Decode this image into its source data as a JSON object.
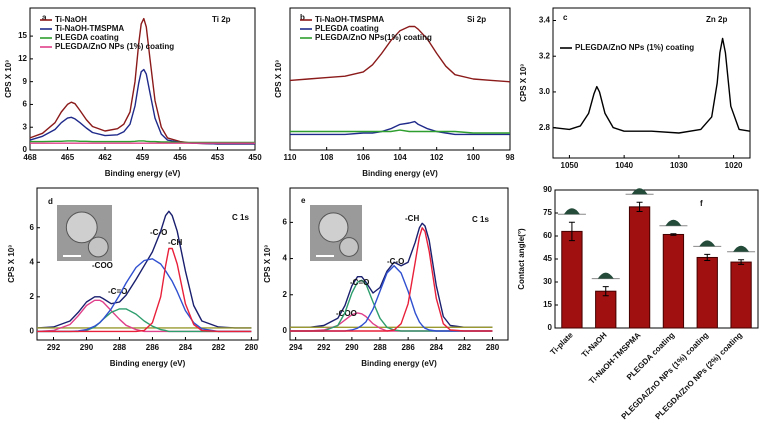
{
  "chart_data": [
    {
      "type": "line",
      "label": "a",
      "annotation": "Ti 2p",
      "xlabel": "Binding energy (eV)",
      "ylabel": "CPS X 10³",
      "legend": true,
      "xlim": [
        468,
        450
      ],
      "xticks": [
        468,
        465,
        462,
        459,
        456,
        453,
        450
      ],
      "ylim": [
        0,
        18.7
      ],
      "yticks": [
        0,
        3,
        6,
        9,
        12,
        15
      ],
      "x": [
        468,
        467,
        466,
        465.5,
        465,
        464.7,
        464.4,
        464,
        463.5,
        463,
        462,
        461,
        460.5,
        460,
        459.6,
        459.3,
        459.1,
        458.9,
        458.7,
        458.4,
        458,
        457.5,
        457,
        456,
        455,
        453,
        450
      ],
      "series": [
        {
          "name": "Ti-NaOH",
          "color": "#8b1a1a",
          "values": [
            1.6,
            2.2,
            3.6,
            5.0,
            6.0,
            6.3,
            6.1,
            5.2,
            4.0,
            3.1,
            2.5,
            2.8,
            3.4,
            5.0,
            9.0,
            14.0,
            16.6,
            17.3,
            16.2,
            12.0,
            6.5,
            3.0,
            1.6,
            1.1,
            0.9,
            0.8,
            0.8
          ]
        },
        {
          "name": "Ti-NaOH-TMSPMA",
          "color": "#1f2a8a",
          "values": [
            1.3,
            1.8,
            2.7,
            3.6,
            4.2,
            4.3,
            4.1,
            3.6,
            2.9,
            2.3,
            1.9,
            2.0,
            2.4,
            3.4,
            5.8,
            8.8,
            10.3,
            10.6,
            10.0,
            7.5,
            4.2,
            2.1,
            1.3,
            1.0,
            0.9,
            0.8,
            0.8
          ]
        },
        {
          "name": "PLEGDA coating",
          "color": "#2e9e2e",
          "values": [
            1.1,
            1.1,
            1.15,
            1.15,
            1.2,
            1.2,
            1.2,
            1.15,
            1.15,
            1.1,
            1.1,
            1.1,
            1.1,
            1.1,
            1.15,
            1.2,
            1.2,
            1.2,
            1.15,
            1.1,
            1.1,
            1.05,
            1.05,
            1.0,
            1.0,
            1.0,
            1.0
          ]
        },
        {
          "name": "PLEGDA/ZnO NPs (1%) coating",
          "color": "#e0408a",
          "values": [
            0.9,
            0.9,
            0.9,
            0.9,
            0.9,
            0.9,
            0.9,
            0.9,
            0.9,
            0.9,
            0.9,
            0.9,
            0.9,
            0.9,
            0.9,
            0.9,
            0.9,
            0.9,
            0.9,
            0.9,
            0.9,
            0.9,
            0.9,
            0.9,
            0.9,
            0.9,
            0.9
          ]
        }
      ]
    },
    {
      "type": "line",
      "label": "b",
      "annotation": "Si 2p",
      "xlabel": "Binding energy (eV)",
      "ylabel": "CPS X 10³",
      "legend": true,
      "xlim": [
        110,
        98
      ],
      "xticks": [
        110,
        108,
        106,
        104,
        102,
        100,
        98
      ],
      "ylim": [
        0,
        1
      ],
      "x": [
        110,
        109,
        108,
        107,
        106,
        105.5,
        105,
        104.5,
        104,
        103.5,
        103.2,
        103,
        102.5,
        102,
        101.5,
        101,
        100,
        99,
        98
      ],
      "series": [
        {
          "name": "Ti-NaOH-TMSPMA",
          "color": "#8b1a1a",
          "values": [
            0.49,
            0.5,
            0.51,
            0.52,
            0.55,
            0.6,
            0.68,
            0.77,
            0.84,
            0.87,
            0.87,
            0.85,
            0.78,
            0.68,
            0.59,
            0.53,
            0.5,
            0.49,
            0.48
          ]
        },
        {
          "name": "PLEGDA coating",
          "color": "#1f2a8a",
          "values": [
            0.11,
            0.11,
            0.11,
            0.11,
            0.12,
            0.12,
            0.13,
            0.15,
            0.18,
            0.19,
            0.2,
            0.18,
            0.15,
            0.13,
            0.12,
            0.11,
            0.11,
            0.11,
            0.11
          ]
        },
        {
          "name": "PLEGDA/ZnO NPs(1%) coating",
          "color": "#2e9e2e",
          "values": [
            0.13,
            0.13,
            0.13,
            0.13,
            0.13,
            0.13,
            0.13,
            0.13,
            0.14,
            0.13,
            0.13,
            0.13,
            0.13,
            0.13,
            0.13,
            0.13,
            0.12,
            0.12,
            0.12
          ]
        }
      ]
    },
    {
      "type": "line",
      "label": "c",
      "annotation": "Zn 2p",
      "ylabel": "CPS X 10³",
      "legend": true,
      "xlim": [
        1053,
        1017
      ],
      "xticks": [
        1050,
        1040,
        1030,
        1020
      ],
      "ylim": [
        2.63,
        3.47
      ],
      "yticks": [
        2.8,
        {
          "value": 3,
          "label": "3.0"
        },
        3.2,
        3.4
      ],
      "x": [
        1053,
        1050,
        1048,
        1046.5,
        1045.5,
        1045,
        1044.5,
        1043.5,
        1042,
        1040,
        1035,
        1030,
        1026,
        1024,
        1023,
        1022.5,
        1022,
        1021.5,
        1020.5,
        1019,
        1017
      ],
      "series": [
        {
          "name": "PLEGDA/ZnO NPs (1%) coating",
          "color": "#000000",
          "values": [
            2.8,
            2.79,
            2.81,
            2.88,
            2.99,
            3.03,
            3.0,
            2.88,
            2.8,
            2.78,
            2.78,
            2.77,
            2.79,
            2.86,
            3.05,
            3.22,
            3.3,
            3.22,
            2.92,
            2.79,
            2.78
          ]
        }
      ]
    },
    {
      "type": "line",
      "label": "d",
      "annotation": "C 1s",
      "xlabel": "Binding energy (eV)",
      "ylabel": "CPS X 10³",
      "xlim": [
        293,
        279.6
      ],
      "xticks": [
        292,
        290,
        288,
        286,
        284,
        282,
        280
      ],
      "ylim": [
        -0.5,
        8.3
      ],
      "yticks": [
        0,
        2,
        4,
        6
      ],
      "x": [
        293,
        292,
        291,
        290.5,
        290,
        289.5,
        289.2,
        289,
        288.5,
        288,
        287.6,
        287,
        286.5,
        286,
        285.5,
        285.2,
        285,
        284.8,
        284.5,
        284,
        283.5,
        283,
        282,
        281,
        280
      ],
      "series": [
        {
          "color": "#1a1f6e",
          "values": [
            0.2,
            0.25,
            0.6,
            1.1,
            1.7,
            2.0,
            2.0,
            1.9,
            1.6,
            1.7,
            2.1,
            3.0,
            3.8,
            4.6,
            5.8,
            6.7,
            6.95,
            6.7,
            5.8,
            3.5,
            1.5,
            0.6,
            0.25,
            0.2,
            0.2
          ]
        },
        {
          "color": "#9a9a30",
          "values": [
            0.2,
            0.2,
            0.2,
            0.2,
            0.2,
            0.2,
            0.2,
            0.2,
            0.2,
            0.2,
            0.2,
            0.2,
            0.2,
            0.2,
            0.2,
            0.2,
            0.2,
            0.2,
            0.2,
            0.2,
            0.2,
            0.2,
            0.2,
            0.2,
            0.2
          ]
        },
        {
          "name": "-COO",
          "color": "#e0408a",
          "values": [
            0,
            0.05,
            0.4,
            0.9,
            1.5,
            1.8,
            1.8,
            1.7,
            1.2,
            0.7,
            0.35,
            0.1,
            0,
            0,
            0,
            0,
            0,
            0,
            0,
            0,
            0,
            0,
            0,
            0,
            0
          ]
        },
        {
          "name": "-C=O",
          "color": "#2e9e6e",
          "values": [
            0,
            0,
            0,
            0,
            0.05,
            0.25,
            0.5,
            0.7,
            1.1,
            1.3,
            1.3,
            1.0,
            0.6,
            0.3,
            0.1,
            0.05,
            0,
            0,
            0,
            0,
            0,
            0,
            0,
            0,
            0
          ]
        },
        {
          "name": "-C-O",
          "color": "#3050d0",
          "values": [
            0,
            0,
            0,
            0.02,
            0.1,
            0.3,
            0.5,
            0.7,
            1.3,
            2.1,
            2.8,
            3.7,
            4.1,
            4.2,
            3.9,
            3.5,
            3.2,
            2.9,
            2.3,
            1.2,
            0.5,
            0.15,
            0,
            0,
            0
          ]
        },
        {
          "name": "-CH",
          "color": "#e8203a",
          "values": [
            0,
            0,
            0,
            0,
            0,
            0,
            0,
            0,
            0,
            0,
            0,
            0,
            0.05,
            0.5,
            2.0,
            3.8,
            4.8,
            4.8,
            3.9,
            1.6,
            0.4,
            0.05,
            0,
            0,
            0
          ]
        }
      ]
    },
    {
      "type": "line",
      "label": "e",
      "annotation": "C 1s",
      "xlabel": "Binding energy (eV)",
      "ylabel": "CPS X 10³",
      "xlim": [
        294.4,
        278.9
      ],
      "xticks": [
        294,
        292,
        290,
        288,
        286,
        284,
        282,
        280
      ],
      "ylim": [
        -0.5,
        7.9
      ],
      "yticks": [
        0,
        2,
        4,
        6
      ],
      "x": [
        294.4,
        293,
        292,
        291,
        290.5,
        290,
        289.6,
        289.3,
        289,
        288.5,
        288,
        287.5,
        287,
        286.5,
        286,
        285.5,
        285.2,
        285,
        284.8,
        284.5,
        284,
        283.5,
        283,
        282,
        280
      ],
      "series": [
        {
          "color": "#1a1f6e",
          "values": [
            0.2,
            0.2,
            0.3,
            0.7,
            1.4,
            2.5,
            3.0,
            3.0,
            2.7,
            2.1,
            2.4,
            3.3,
            3.8,
            3.6,
            3.8,
            4.9,
            5.7,
            5.95,
            5.8,
            5.0,
            2.5,
            0.8,
            0.3,
            0.2,
            0.2
          ]
        },
        {
          "color": "#9a9a30",
          "values": [
            0.2,
            0.2,
            0.2,
            0.2,
            0.2,
            0.2,
            0.2,
            0.2,
            0.2,
            0.2,
            0.2,
            0.2,
            0.2,
            0.2,
            0.2,
            0.2,
            0.2,
            0.2,
            0.2,
            0.2,
            0.2,
            0.2,
            0.2,
            0.2,
            0.2
          ]
        },
        {
          "name": "-COO",
          "color": "#e0408a",
          "values": [
            0,
            0,
            0.05,
            0.3,
            0.6,
            0.9,
            1.0,
            0.95,
            0.8,
            0.4,
            0.15,
            0,
            0,
            0,
            0,
            0,
            0,
            0,
            0,
            0,
            0,
            0,
            0,
            0,
            0
          ]
        },
        {
          "name": "-C=O",
          "color": "#2e9e6e",
          "values": [
            0,
            0,
            0,
            0.3,
            1.0,
            2.1,
            2.7,
            2.8,
            2.6,
            1.6,
            0.7,
            0.2,
            0.05,
            0,
            0,
            0,
            0,
            0,
            0,
            0,
            0,
            0,
            0,
            0,
            0
          ]
        },
        {
          "name": "-C-O",
          "color": "#3050d0",
          "values": [
            0,
            0,
            0,
            0,
            0,
            0.05,
            0.15,
            0.3,
            0.5,
            1.2,
            2.2,
            3.2,
            3.6,
            3.2,
            2.2,
            1.0,
            0.5,
            0.3,
            0.15,
            0.05,
            0,
            0,
            0,
            0,
            0
          ]
        },
        {
          "name": "-CH",
          "color": "#e8203a",
          "values": [
            0,
            0,
            0,
            0,
            0,
            0,
            0,
            0,
            0,
            0,
            0,
            0,
            0.05,
            0.4,
            1.5,
            3.8,
            5.2,
            5.7,
            5.5,
            4.4,
            1.8,
            0.4,
            0.05,
            0,
            0
          ]
        }
      ]
    },
    {
      "type": "bar",
      "label": "f",
      "ylabel": "Contact angle(°)",
      "color": "#a01010",
      "categories": [
        "Ti-plate",
        "Ti-NaOH",
        "Ti-NaOH-TMSPMA",
        "PLEGDA coating",
        "PLEGDA/ZnO NPs (1%) coating",
        "PLEGDA/ZnO NPs (2%) coating"
      ],
      "values": [
        63,
        24,
        79,
        61,
        46,
        43
      ],
      "errors": [
        6,
        3,
        3,
        0.5,
        2,
        1.5
      ],
      "ylim": [
        0,
        90
      ],
      "yticks": [
        0,
        15,
        30,
        45,
        60,
        75,
        90
      ]
    }
  ]
}
